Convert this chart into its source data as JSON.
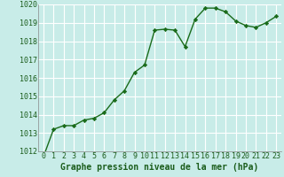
{
  "x": [
    0,
    1,
    2,
    3,
    4,
    5,
    6,
    7,
    8,
    9,
    10,
    11,
    12,
    13,
    14,
    15,
    16,
    17,
    18,
    19,
    20,
    21,
    22,
    23
  ],
  "y": [
    1011.7,
    1013.2,
    1013.4,
    1013.4,
    1013.7,
    1013.8,
    1014.1,
    1014.8,
    1015.3,
    1016.3,
    1016.7,
    1018.6,
    1018.65,
    1018.6,
    1017.7,
    1019.2,
    1019.8,
    1019.8,
    1019.6,
    1019.1,
    1018.85,
    1018.75,
    1019.0,
    1019.35
  ],
  "line_color": "#1a6b1a",
  "marker": "D",
  "marker_size": 2.2,
  "bg_color": "#c8ece8",
  "grid_color": "#ffffff",
  "xlabel": "Graphe pression niveau de la mer (hPa)",
  "xlabel_color": "#1a5c1a",
  "tick_color": "#1a5c1a",
  "ylim": [
    1012,
    1020
  ],
  "yticks": [
    1012,
    1013,
    1014,
    1015,
    1016,
    1017,
    1018,
    1019,
    1020
  ],
  "xticks": [
    0,
    1,
    2,
    3,
    4,
    5,
    6,
    7,
    8,
    9,
    10,
    11,
    12,
    13,
    14,
    15,
    16,
    17,
    18,
    19,
    20,
    21,
    22,
    23
  ],
  "line_width": 1.0,
  "font_size": 6.5,
  "xlabel_fontsize": 7.0
}
